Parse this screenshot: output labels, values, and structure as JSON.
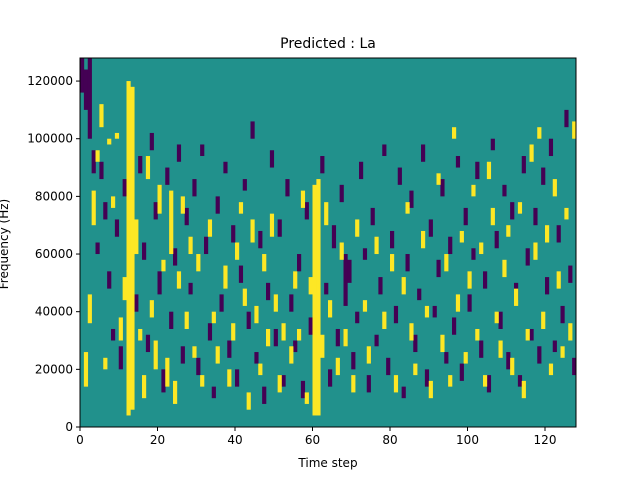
{
  "chart_data": {
    "type": "heatmap",
    "title": "Predicted : La",
    "xlabel": "Time step",
    "ylabel": "Frequency (Hz)",
    "xlim": [
      0,
      128
    ],
    "ylim": [
      0,
      128000
    ],
    "x_ticks": [
      0,
      20,
      40,
      60,
      80,
      100,
      120
    ],
    "x_tick_labels": [
      "0",
      "20",
      "40",
      "60",
      "80",
      "100",
      "120"
    ],
    "y_ticks": [
      0,
      20000,
      40000,
      60000,
      80000,
      100000,
      120000
    ],
    "y_tick_labels": [
      "0",
      "20000",
      "40000",
      "60000",
      "80000",
      "100000",
      "120000"
    ],
    "grid": false,
    "legend": "none",
    "colors": {
      "background": "#21918c",
      "high": "#fde725",
      "low": "#440154"
    },
    "rows": 128,
    "cols": 128,
    "high_cells": [
      [
        1,
        14,
        26
      ],
      [
        2,
        36,
        46
      ],
      [
        3,
        70,
        82
      ],
      [
        4,
        92,
        96
      ],
      [
        5,
        104,
        112
      ],
      [
        6,
        20,
        24
      ],
      [
        7,
        98,
        100
      ],
      [
        8,
        76,
        80
      ],
      [
        9,
        100,
        102
      ],
      [
        10,
        30,
        38
      ],
      [
        11,
        44,
        52
      ],
      [
        12,
        4,
        120
      ],
      [
        13,
        6,
        118
      ],
      [
        14,
        60,
        72
      ],
      [
        15,
        30,
        34
      ],
      [
        16,
        10,
        18
      ],
      [
        17,
        86,
        94
      ],
      [
        18,
        38,
        44
      ],
      [
        19,
        20,
        30
      ],
      [
        20,
        74,
        84
      ],
      [
        21,
        54,
        58
      ],
      [
        22,
        14,
        24
      ],
      [
        23,
        60,
        82
      ],
      [
        24,
        8,
        16
      ],
      [
        25,
        48,
        54
      ],
      [
        26,
        74,
        80
      ],
      [
        27,
        34,
        40
      ],
      [
        28,
        60,
        66
      ],
      [
        29,
        24,
        28
      ],
      [
        30,
        54,
        60
      ],
      [
        31,
        14,
        18
      ],
      [
        33,
        66,
        72
      ],
      [
        34,
        36,
        40
      ],
      [
        35,
        22,
        28
      ],
      [
        37,
        48,
        56
      ],
      [
        38,
        14,
        20
      ],
      [
        39,
        30,
        36
      ],
      [
        40,
        58,
        64
      ],
      [
        41,
        74,
        78
      ],
      [
        42,
        42,
        48
      ],
      [
        43,
        6,
        12
      ],
      [
        44,
        64,
        72
      ],
      [
        45,
        36,
        42
      ],
      [
        46,
        18,
        22
      ],
      [
        47,
        54,
        60
      ],
      [
        48,
        28,
        34
      ],
      [
        49,
        66,
        74
      ],
      [
        50,
        40,
        46
      ],
      [
        51,
        12,
        18
      ],
      [
        52,
        30,
        36
      ],
      [
        54,
        22,
        28
      ],
      [
        55,
        48,
        54
      ],
      [
        56,
        30,
        34
      ],
      [
        57,
        76,
        82
      ],
      [
        58,
        8,
        12
      ],
      [
        59,
        46,
        52
      ],
      [
        60,
        4,
        84
      ],
      [
        61,
        4,
        86
      ],
      [
        62,
        24,
        32
      ],
      [
        63,
        70,
        78
      ],
      [
        64,
        38,
        44
      ],
      [
        66,
        18,
        24
      ],
      [
        67,
        58,
        64
      ],
      [
        68,
        28,
        34
      ],
      [
        70,
        12,
        18
      ],
      [
        71,
        66,
        72
      ],
      [
        73,
        40,
        44
      ],
      [
        74,
        22,
        28
      ],
      [
        76,
        60,
        66
      ],
      [
        78,
        34,
        40
      ],
      [
        80,
        54,
        60
      ],
      [
        81,
        12,
        18
      ],
      [
        83,
        46,
        52
      ],
      [
        84,
        74,
        78
      ],
      [
        85,
        30,
        36
      ],
      [
        86,
        18,
        22
      ],
      [
        88,
        62,
        68
      ],
      [
        89,
        38,
        42
      ],
      [
        90,
        10,
        16
      ],
      [
        92,
        84,
        88
      ],
      [
        93,
        26,
        32
      ],
      [
        94,
        54,
        60
      ],
      [
        95,
        14,
        18
      ],
      [
        96,
        100,
        104
      ],
      [
        97,
        40,
        46
      ],
      [
        98,
        64,
        68
      ],
      [
        99,
        22,
        26
      ],
      [
        100,
        48,
        54
      ],
      [
        101,
        80,
        84
      ],
      [
        102,
        30,
        34
      ],
      [
        103,
        60,
        64
      ],
      [
        104,
        14,
        18
      ],
      [
        105,
        86,
        92
      ],
      [
        106,
        70,
        76
      ],
      [
        107,
        36,
        40
      ],
      [
        108,
        24,
        30
      ],
      [
        109,
        52,
        58
      ],
      [
        110,
        66,
        70
      ],
      [
        111,
        18,
        24
      ],
      [
        112,
        42,
        48
      ],
      [
        113,
        74,
        78
      ],
      [
        114,
        10,
        16
      ],
      [
        115,
        30,
        34
      ],
      [
        116,
        92,
        98
      ],
      [
        117,
        58,
        64
      ],
      [
        118,
        100,
        104
      ],
      [
        119,
        34,
        40
      ],
      [
        120,
        64,
        70
      ],
      [
        121,
        18,
        22
      ],
      [
        122,
        80,
        86
      ],
      [
        123,
        48,
        54
      ],
      [
        124,
        24,
        28
      ],
      [
        125,
        72,
        76
      ],
      [
        126,
        30,
        36
      ],
      [
        127,
        100,
        106
      ]
    ],
    "low_cells": [
      [
        0,
        116,
        128
      ],
      [
        1,
        110,
        124
      ],
      [
        2,
        100,
        128
      ],
      [
        3,
        88,
        96
      ],
      [
        4,
        60,
        64
      ],
      [
        5,
        86,
        92
      ],
      [
        6,
        72,
        78
      ],
      [
        7,
        48,
        54
      ],
      [
        8,
        30,
        34
      ],
      [
        9,
        66,
        72
      ],
      [
        10,
        20,
        28
      ],
      [
        11,
        80,
        86
      ],
      [
        14,
        40,
        46
      ],
      [
        15,
        88,
        94
      ],
      [
        16,
        58,
        64
      ],
      [
        17,
        26,
        32
      ],
      [
        18,
        96,
        102
      ],
      [
        19,
        72,
        78
      ],
      [
        20,
        46,
        54
      ],
      [
        21,
        12,
        20
      ],
      [
        22,
        84,
        90
      ],
      [
        23,
        34,
        40
      ],
      [
        24,
        56,
        62
      ],
      [
        25,
        92,
        98
      ],
      [
        26,
        22,
        28
      ],
      [
        27,
        70,
        76
      ],
      [
        28,
        46,
        50
      ],
      [
        29,
        80,
        86
      ],
      [
        30,
        18,
        24
      ],
      [
        31,
        94,
        98
      ],
      [
        32,
        60,
        66
      ],
      [
        33,
        30,
        36
      ],
      [
        34,
        10,
        14
      ],
      [
        35,
        74,
        80
      ],
      [
        36,
        40,
        46
      ],
      [
        37,
        88,
        92
      ],
      [
        38,
        24,
        30
      ],
      [
        39,
        64,
        70
      ],
      [
        40,
        14,
        20
      ],
      [
        41,
        50,
        56
      ],
      [
        42,
        82,
        86
      ],
      [
        43,
        34,
        40
      ],
      [
        44,
        100,
        106
      ],
      [
        45,
        22,
        26
      ],
      [
        46,
        62,
        68
      ],
      [
        47,
        8,
        14
      ],
      [
        48,
        44,
        50
      ],
      [
        49,
        90,
        96
      ],
      [
        50,
        28,
        34
      ],
      [
        51,
        66,
        72
      ],
      [
        52,
        14,
        18
      ],
      [
        53,
        80,
        86
      ],
      [
        54,
        40,
        46
      ],
      [
        55,
        26,
        30
      ],
      [
        56,
        54,
        60
      ],
      [
        57,
        10,
        16
      ],
      [
        58,
        72,
        78
      ],
      [
        59,
        32,
        38
      ],
      [
        62,
        88,
        94
      ],
      [
        63,
        46,
        50
      ],
      [
        64,
        14,
        20
      ],
      [
        65,
        62,
        70
      ],
      [
        66,
        28,
        34
      ],
      [
        67,
        78,
        84
      ],
      [
        68,
        42,
        60
      ],
      [
        69,
        50,
        58
      ],
      [
        70,
        20,
        26
      ],
      [
        71,
        36,
        40
      ],
      [
        72,
        86,
        92
      ],
      [
        73,
        58,
        62
      ],
      [
        74,
        12,
        18
      ],
      [
        75,
        70,
        76
      ],
      [
        76,
        28,
        32
      ],
      [
        77,
        46,
        52
      ],
      [
        78,
        94,
        98
      ],
      [
        79,
        18,
        24
      ],
      [
        80,
        62,
        68
      ],
      [
        81,
        36,
        42
      ],
      [
        82,
        84,
        90
      ],
      [
        83,
        10,
        14
      ],
      [
        84,
        54,
        60
      ],
      [
        85,
        76,
        82
      ],
      [
        86,
        26,
        32
      ],
      [
        87,
        44,
        48
      ],
      [
        88,
        92,
        98
      ],
      [
        89,
        14,
        20
      ],
      [
        90,
        66,
        72
      ],
      [
        91,
        38,
        42
      ],
      [
        92,
        52,
        58
      ],
      [
        93,
        80,
        86
      ],
      [
        94,
        22,
        26
      ],
      [
        95,
        60,
        66
      ],
      [
        96,
        32,
        38
      ],
      [
        97,
        90,
        94
      ],
      [
        98,
        16,
        22
      ],
      [
        99,
        70,
        76
      ],
      [
        100,
        40,
        46
      ],
      [
        101,
        58,
        62
      ],
      [
        102,
        86,
        92
      ],
      [
        103,
        24,
        30
      ],
      [
        104,
        48,
        54
      ],
      [
        105,
        12,
        18
      ],
      [
        106,
        96,
        100
      ],
      [
        107,
        62,
        68
      ],
      [
        108,
        34,
        40
      ],
      [
        109,
        80,
        84
      ],
      [
        110,
        20,
        26
      ],
      [
        111,
        72,
        78
      ],
      [
        112,
        44,
        50
      ],
      [
        113,
        14,
        18
      ],
      [
        114,
        88,
        94
      ],
      [
        115,
        56,
        62
      ],
      [
        116,
        30,
        34
      ],
      [
        117,
        70,
        76
      ],
      [
        118,
        22,
        28
      ],
      [
        119,
        84,
        90
      ],
      [
        120,
        46,
        52
      ],
      [
        121,
        94,
        100
      ],
      [
        122,
        26,
        30
      ],
      [
        123,
        64,
        70
      ],
      [
        124,
        36,
        42
      ],
      [
        125,
        104,
        110
      ],
      [
        126,
        50,
        56
      ],
      [
        127,
        18,
        24
      ]
    ]
  }
}
